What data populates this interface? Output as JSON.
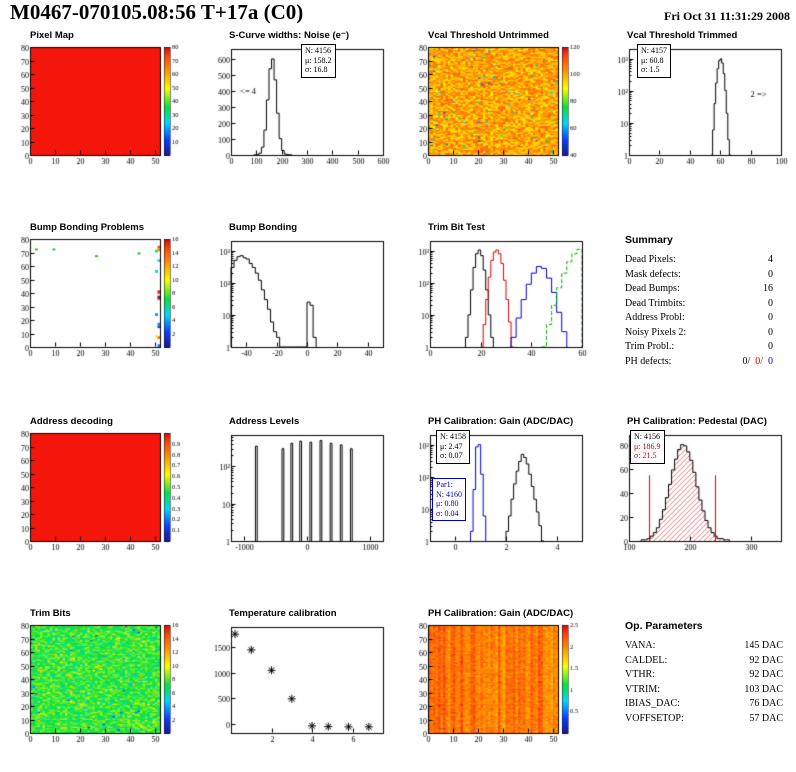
{
  "header": {
    "title": "M0467-070105.08:56 T+17a (C0)",
    "date": "Fri Oct 31 11:31:29 2008"
  },
  "chart_data": [
    {
      "id": "pixel_map",
      "type": "heatmap",
      "title": "Pixel Map",
      "mode": "uniform",
      "color": "#f5160b",
      "xlim": [
        0,
        52
      ],
      "xticks": [
        0,
        10,
        20,
        30,
        40,
        50
      ],
      "ylim": [
        0,
        80
      ],
      "yticks": [
        0,
        10,
        20,
        30,
        40,
        50,
        60,
        70,
        80
      ],
      "cb": {
        "range": [
          0,
          80
        ],
        "ticks": [
          10,
          20,
          30,
          40,
          50,
          60,
          70,
          80
        ]
      }
    },
    {
      "id": "scurve_noise",
      "type": "hist",
      "title": "S-Curve widths: Noise (e⁻)",
      "bins": {
        "start": 90,
        "width": 10,
        "counts": [
          1,
          2,
          11,
          49,
          155,
          343,
          537,
          598,
          468,
          260,
          102,
          28,
          6,
          2,
          1
        ]
      },
      "xlim": [
        0,
        600
      ],
      "xticks": [
        0,
        100,
        200,
        300,
        400,
        500,
        600
      ],
      "ylim": [
        0,
        660
      ],
      "yticks": [
        0,
        100,
        200,
        300,
        400,
        500,
        600
      ],
      "stats": [
        "N: 4156",
        "μ: 158.2",
        "σ: 16.8"
      ],
      "annotations": [
        {
          "text": "<= 4",
          "fx": 0.06,
          "fy": 0.42
        }
      ]
    },
    {
      "id": "vcal_untrimmed",
      "type": "heatmap",
      "title": "Vcal Threshold Untrimmed",
      "mode": "noise",
      "seed": 11,
      "base": 0.76,
      "spread": 0.12,
      "low": 0.015,
      "xlim": [
        0,
        52
      ],
      "xticks": [
        0,
        10,
        20,
        30,
        40,
        50
      ],
      "ylim": [
        0,
        80
      ],
      "yticks": [
        0,
        10,
        20,
        30,
        40,
        50,
        60,
        70,
        80
      ],
      "cb": {
        "range": [
          40,
          120
        ],
        "ticks": [
          40,
          60,
          80,
          100,
          120
        ]
      }
    },
    {
      "id": "vcal_trimmed",
      "type": "hist",
      "title": "Vcal Threshold Trimmed",
      "bins": {
        "start": 54,
        "width": 1,
        "counts": [
          1,
          6,
          40,
          175,
          487,
          867,
          990,
          726,
          341,
          103,
          20,
          3,
          1
        ]
      },
      "xlim": [
        0,
        100
      ],
      "xticks": [
        0,
        20,
        40,
        60,
        80,
        100
      ],
      "ylog": true,
      "ymax": 2000,
      "stats": [
        "N: 4157",
        "μ: 60.8",
        "σ: 1.5"
      ],
      "annotations": [
        {
          "text": "2 =>",
          "fx": 0.8,
          "fy": 0.45
        }
      ]
    },
    {
      "id": "bump_problems",
      "type": "heatmap",
      "title": "Bump Bonding Problems",
      "mode": "sparse",
      "seed": 23,
      "edge_count": 16,
      "scatter_count": 4,
      "xlim": [
        0,
        52
      ],
      "xticks": [
        0,
        10,
        20,
        30,
        40,
        50
      ],
      "ylim": [
        0,
        80
      ],
      "yticks": [
        0,
        10,
        20,
        30,
        40,
        50,
        60,
        70,
        80
      ],
      "cb": {
        "range": [
          0,
          16
        ],
        "ticks": [
          2,
          4,
          6,
          8,
          10,
          12,
          14,
          16
        ]
      }
    },
    {
      "id": "bump_bonding",
      "type": "hist",
      "title": "Bump Bonding",
      "bins": {
        "start": -50,
        "width": 2,
        "counts": [
          300,
          500,
          650,
          700,
          600,
          550,
          400,
          300,
          200,
          120,
          60,
          30,
          15,
          6,
          3,
          2,
          1,
          0,
          0,
          0,
          0,
          0,
          0,
          0,
          0,
          25,
          20,
          2
        ]
      },
      "xlim": [
        -50,
        50
      ],
      "xticks": [
        -40,
        -20,
        0,
        20,
        40
      ],
      "ylog": true,
      "ymax": 2000
    },
    {
      "id": "trim_bit_test",
      "type": "multihist",
      "title": "Trim Bit Test",
      "series": [
        {
          "color": "#000000",
          "start": 14,
          "width": 1,
          "counts": [
            2,
            10,
            60,
            300,
            800,
            1050,
            700,
            250,
            60,
            10,
            2
          ]
        },
        {
          "color": "#dd0000",
          "start": 20,
          "width": 1,
          "counts": [
            1,
            5,
            30,
            150,
            500,
            900,
            1050,
            800,
            400,
            120,
            30,
            6,
            1
          ]
        },
        {
          "color": "#0000cc",
          "start": 32,
          "width": 2,
          "counts": [
            2,
            8,
            30,
            90,
            200,
            320,
            280,
            140,
            50,
            12,
            3
          ]
        },
        {
          "color": "#00aa00",
          "dash": [
            4,
            2
          ],
          "start": 44,
          "width": 2,
          "counts": [
            1,
            5,
            20,
            70,
            200,
            450,
            800,
            1100
          ]
        }
      ],
      "xlim": [
        0,
        60
      ],
      "xticks": [
        0,
        20,
        40,
        60
      ],
      "ylog": true,
      "ymax": 2000
    },
    {
      "id": "address_decoding",
      "type": "heatmap",
      "title": "Address decoding",
      "mode": "uniform",
      "color": "#f5160b",
      "xlim": [
        0,
        52
      ],
      "xticks": [
        0,
        10,
        20,
        30,
        40,
        50
      ],
      "ylim": [
        0,
        80
      ],
      "yticks": [
        0,
        10,
        20,
        30,
        40,
        50,
        60,
        70,
        80
      ],
      "cb": {
        "range": [
          0,
          1
        ],
        "ticks": [
          0.1,
          0.2,
          0.3,
          0.4,
          0.5,
          0.6,
          0.7,
          0.8,
          0.9
        ]
      }
    },
    {
      "id": "address_levels",
      "type": "spikes",
      "title": "Address Levels",
      "spikes": [
        [
          -800,
          350
        ],
        [
          -380,
          300
        ],
        [
          -240,
          420
        ],
        [
          -100,
          480
        ],
        [
          60,
          450
        ],
        [
          220,
          500
        ],
        [
          380,
          420
        ],
        [
          540,
          380
        ],
        [
          700,
          300
        ]
      ],
      "spike_halfwidth": 14,
      "xlim": [
        -1200,
        1200
      ],
      "xticks": [
        -1000,
        0,
        1000
      ],
      "ylog": true,
      "ymax": 700
    },
    {
      "id": "ph_gain_hist",
      "type": "multihist",
      "title": "PH Calibration: Gain (ADC/DAC)",
      "series": [
        {
          "color": "#000000",
          "start": 2.0,
          "width": 0.1,
          "counts": [
            2,
            6,
            20,
            60,
            150,
            300,
            500,
            400,
            250,
            120,
            50,
            20,
            8,
            3,
            1
          ]
        },
        {
          "color": "#0000cc",
          "start": 0.6,
          "width": 0.1,
          "counts": [
            2,
            40,
            850,
            1000,
            120,
            6
          ]
        }
      ],
      "xlim": [
        -1,
        5
      ],
      "xticks": [
        0,
        2,
        4
      ],
      "ylog": true,
      "ymax": 2000,
      "stats": [
        "N: 4158",
        "μ: 2.47",
        "σ: 0.07"
      ],
      "stats2": [
        "Par1:",
        "N: 4160",
        "μ: 0.80",
        "σ: 0.04"
      ]
    },
    {
      "id": "ph_pedestal",
      "type": "hist",
      "title": "PH Calibration: Pedestal (DAC)",
      "fill": "hatch",
      "bins": {
        "start": 120,
        "width": 5,
        "counts": [
          1,
          1,
          2,
          4,
          7,
          11,
          18,
          26,
          36,
          47,
          59,
          68,
          76,
          80,
          79,
          74,
          67,
          57,
          45,
          34,
          25,
          17,
          11,
          7,
          4,
          2,
          2,
          1,
          1
        ]
      },
      "xlim": [
        100,
        350
      ],
      "xticks": [
        100,
        200,
        300
      ],
      "ylim": [
        0,
        88
      ],
      "yticks": [
        0,
        20,
        40,
        60,
        80
      ],
      "vlines": [
        {
          "x": 133
        },
        {
          "x": 241
        }
      ],
      "stats": [
        "N: 4156",
        "μ: 186.9",
        "σ: 21.5"
      ]
    },
    {
      "id": "trim_bits_map",
      "type": "heatmap",
      "title": "Trim Bits",
      "mode": "noise",
      "seed": 31,
      "base": 0.47,
      "spread": 0.09,
      "low": 0.02,
      "hi": 0.03,
      "xlim": [
        0,
        52
      ],
      "xticks": [
        0,
        10,
        20,
        30,
        40,
        50
      ],
      "ylim": [
        0,
        80
      ],
      "yticks": [
        0,
        10,
        20,
        30,
        40,
        50,
        60,
        70,
        80
      ],
      "cb": {
        "range": [
          0,
          16
        ],
        "ticks": [
          2,
          4,
          6,
          8,
          10,
          12,
          14,
          16
        ]
      }
    },
    {
      "id": "temperature_calibration",
      "type": "scatter",
      "title": "Temperature calibration",
      "points": [
        [
          0.2,
          1760
        ],
        [
          1,
          1450
        ],
        [
          2,
          1050
        ],
        [
          3,
          490
        ],
        [
          4,
          -40
        ],
        [
          4.8,
          -55
        ],
        [
          5.8,
          -60
        ],
        [
          6.8,
          -60
        ]
      ],
      "xlim": [
        0,
        7.5
      ],
      "xticks": [
        2,
        4,
        6
      ],
      "ylim": [
        -180,
        1900
      ],
      "yticks": [
        0,
        500,
        1000,
        1500
      ]
    },
    {
      "id": "ph_gain_map",
      "type": "heatmap",
      "title": "PH Calibration: Gain (ADC/DAC)",
      "mode": "noise_cols",
      "seed": 41,
      "base": 0.84,
      "spread": 0.05,
      "colspread": 0.07,
      "xlim": [
        0,
        52
      ],
      "xticks": [
        0,
        10,
        20,
        30,
        40,
        50
      ],
      "ylim": [
        0,
        80
      ],
      "yticks": [
        0,
        10,
        20,
        30,
        40,
        50,
        60,
        70,
        80
      ],
      "cb": {
        "range": [
          0,
          2.5
        ],
        "ticks": [
          0.5,
          1,
          1.5,
          2,
          2.5
        ]
      }
    }
  ],
  "summary": {
    "title": "Summary",
    "rows": [
      [
        "Dead Pixels:",
        "4"
      ],
      [
        "Mask defects:",
        "0"
      ],
      [
        "Dead Bumps:",
        "16"
      ],
      [
        "Dead Trimbits:",
        "0"
      ],
      [
        "Address Probl:",
        "0"
      ],
      [
        "Noisy Pixels 2:",
        "0"
      ],
      [
        "Trim Probl.:",
        "0"
      ]
    ],
    "ph_label": "PH defects:",
    "ph": [
      "0/",
      "0/",
      "0"
    ]
  },
  "op_parameters": {
    "title": "Op. Parameters",
    "rows": [
      [
        "VANA:",
        "145 DAC"
      ],
      [
        "CALDEL:",
        "92 DAC"
      ],
      [
        "VTHR:",
        "92 DAC"
      ],
      [
        "VTRIM:",
        "103 DAC"
      ],
      [
        "IBIAS_DAC:",
        "76 DAC"
      ],
      [
        "VOFFSETOP:",
        "57 DAC"
      ]
    ]
  }
}
